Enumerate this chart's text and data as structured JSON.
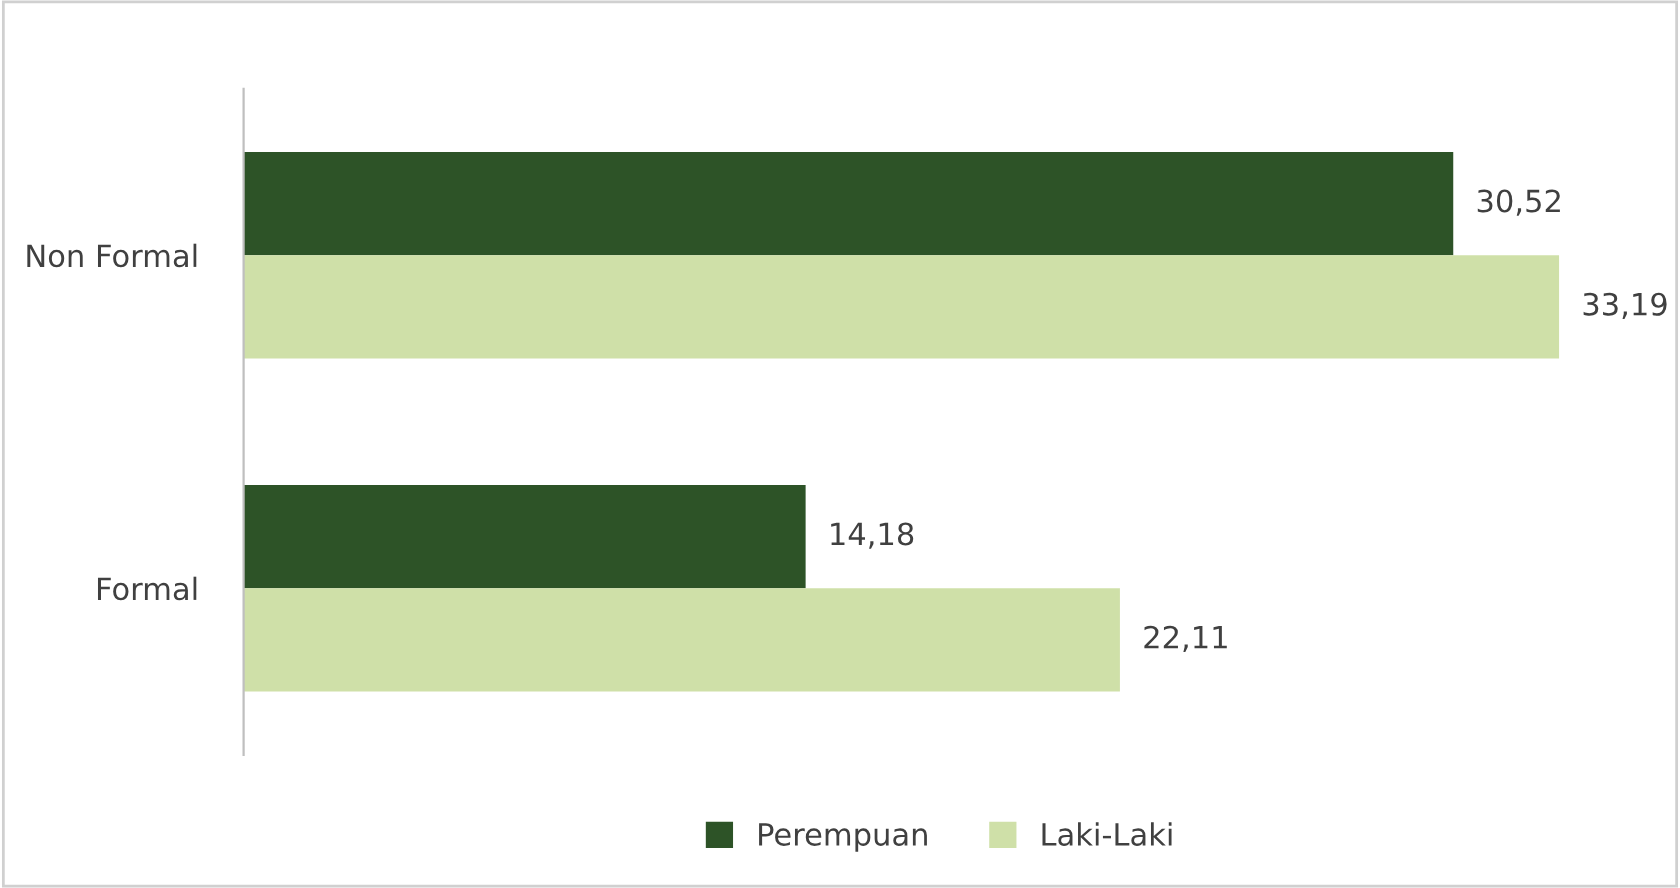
{
  "chart_data": {
    "type": "bar",
    "orientation": "horizontal",
    "categories": [
      "Non Formal",
      "Formal"
    ],
    "series": [
      {
        "name": "Perempuan",
        "color": "#2d5327",
        "values": [
          30.52,
          14.18
        ],
        "value_labels": [
          "30,52",
          "14,18"
        ]
      },
      {
        "name": "Laki-Laki",
        "color": "#cfe0a8",
        "values": [
          33.19,
          22.11
        ],
        "value_labels": [
          "33,19",
          "22,11"
        ]
      }
    ],
    "legend": "bottom",
    "grid": false,
    "tick_labels": "y"
  }
}
